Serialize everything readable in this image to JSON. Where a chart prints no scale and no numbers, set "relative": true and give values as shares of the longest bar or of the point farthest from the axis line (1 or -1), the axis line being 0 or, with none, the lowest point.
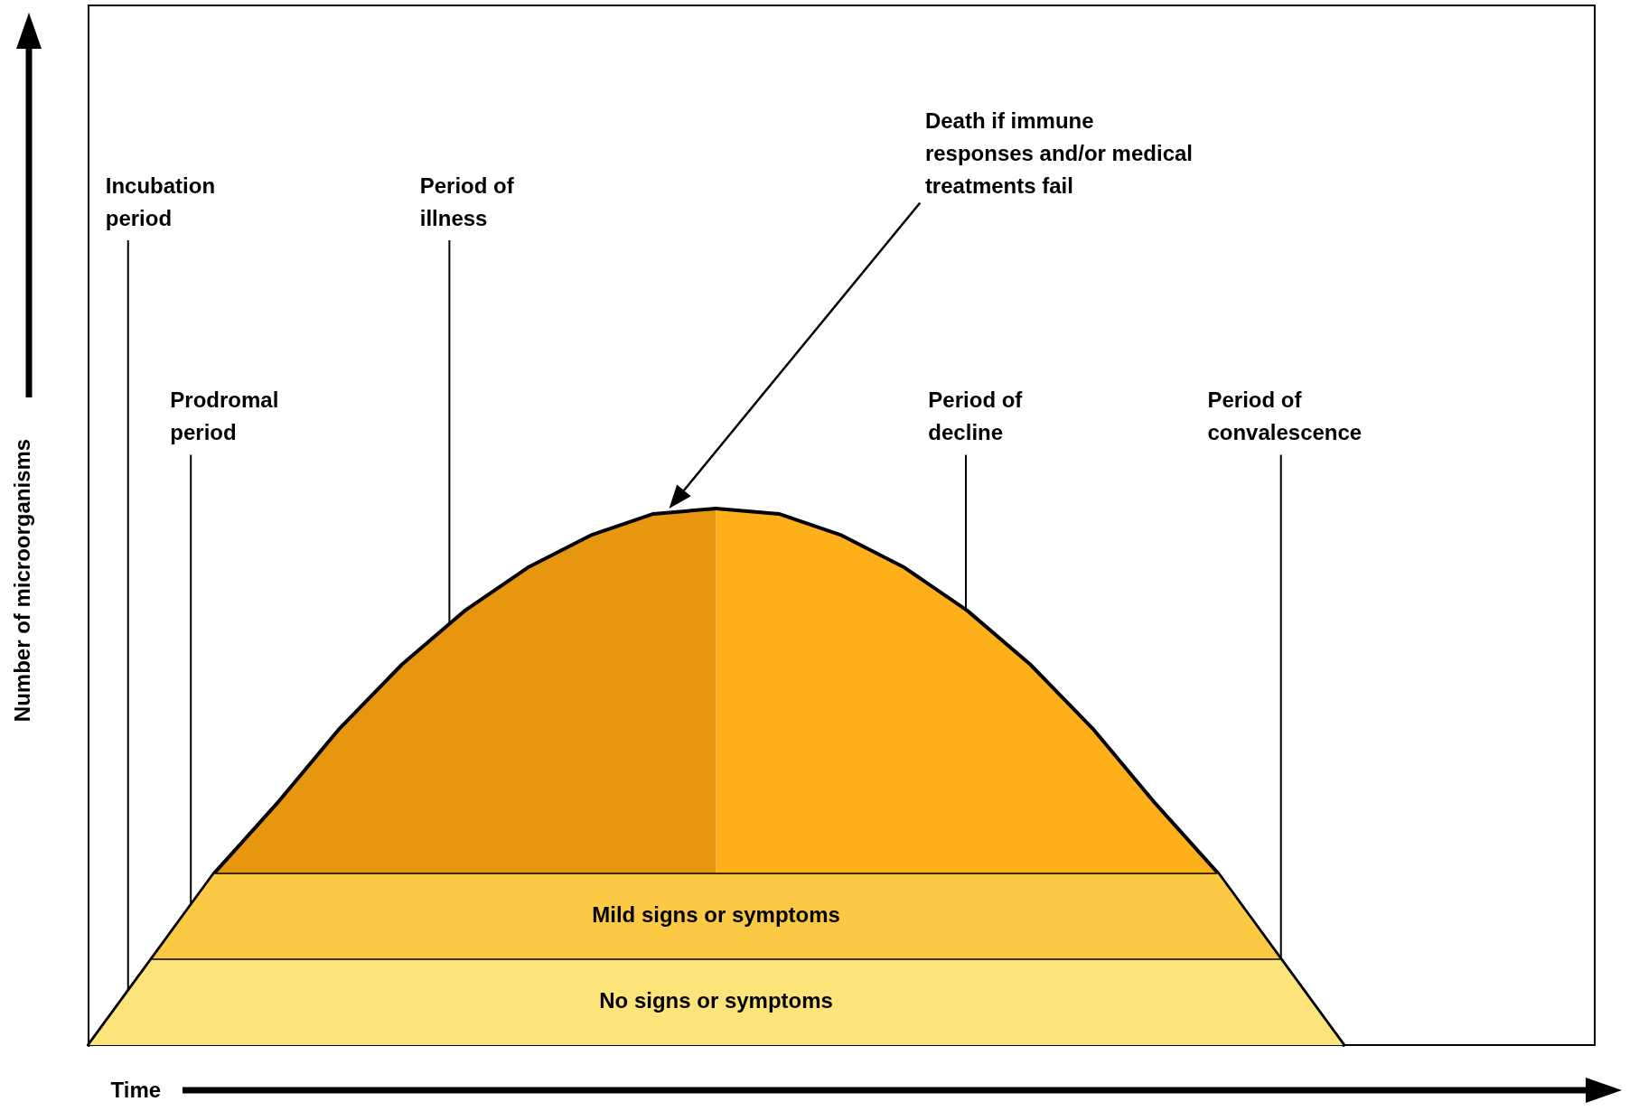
{
  "chart_data": {
    "type": "area",
    "relative": true,
    "xlabel": "Time",
    "ylabel": "Number of microorganisms",
    "categories": [
      null,
      null,
      null,
      null,
      null,
      null,
      null,
      null,
      null,
      null,
      null,
      null,
      null,
      null,
      null,
      null,
      null,
      null,
      null,
      null,
      null,
      null,
      null,
      null,
      null
    ],
    "annotations": [
      "Incubation period",
      "Prodromal period",
      "Period of illness",
      "Period of decline",
      "Period of convalescence",
      "Death if immune responses and/or medical treatments fail"
    ],
    "series": [
      {
        "color": "#e6960f",
        "values": [
          0,
          0.16,
          0.32,
          0.45,
          0.59,
          0.71,
          0.81,
          0.89,
          0.95,
          0.99,
          1,
          null,
          null,
          null,
          null,
          null,
          null,
          null,
          null,
          null,
          null,
          null,
          null,
          null,
          null
        ]
      },
      {
        "color": "#fdb01a",
        "values": [
          null,
          null,
          null,
          null,
          null,
          null,
          null,
          null,
          null,
          null,
          1,
          0.99,
          0.95,
          0.89,
          0.81,
          0.71,
          0.59,
          0.45,
          0.32,
          0.16,
          0,
          null,
          null,
          null,
          null
        ]
      },
      {
        "name": "Mild signs or symptoms",
        "color": "#fcc945",
        "values": [
          0,
          0.16,
          0.32,
          0.32,
          0.32,
          0.32,
          0.32,
          0.32,
          0.32,
          0.32,
          0.32,
          0.32,
          0.32,
          0.32,
          0.32,
          0.32,
          0.32,
          0.32,
          0.32,
          0.16,
          0,
          null,
          null,
          null,
          null
        ]
      },
      {
        "name": "No signs or symptoms",
        "color": "#fde47a",
        "values": [
          0,
          0.16,
          0.16,
          0.16,
          0.16,
          0.16,
          0.16,
          0.16,
          0.16,
          0.16,
          0.16,
          0.16,
          0.16,
          0.16,
          0.16,
          0.16,
          0.16,
          0.16,
          0.16,
          0.16,
          0,
          null,
          null,
          null,
          null
        ]
      }
    ]
  }
}
